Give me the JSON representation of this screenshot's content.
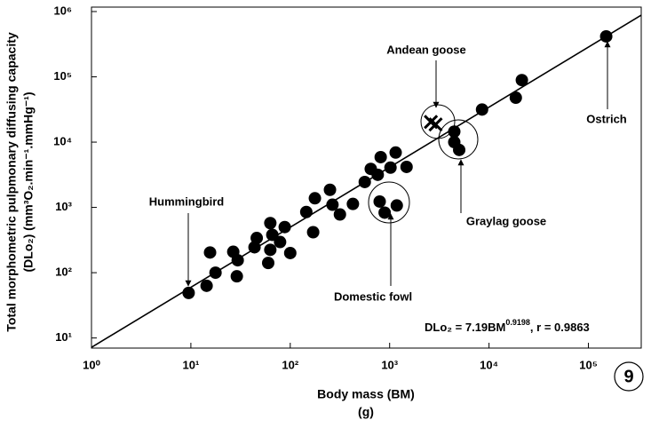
{
  "chart_data": {
    "type": "scatter",
    "x_label": "Body mass (BM)",
    "x_unit": "(g)",
    "y_label": "Total morphometric pulpmonary diffusing capacity",
    "y_unit": "(DLo₂) (mm³O₂.min⁻¹.mmHg⁻¹)",
    "log_x": true,
    "log_y": true,
    "xlim": [
      1,
      340000
    ],
    "ylim": [
      7,
      1170000
    ],
    "xticks": [
      {
        "value": 1,
        "label": "10⁰"
      },
      {
        "value": 10,
        "label": "10¹"
      },
      {
        "value": 100,
        "label": "10²"
      },
      {
        "value": 1000,
        "label": "10³"
      },
      {
        "value": 10000,
        "label": "10⁴"
      },
      {
        "value": 100000,
        "label": "10⁵"
      }
    ],
    "yticks": [
      {
        "value": 10,
        "label": "10¹"
      },
      {
        "value": 100,
        "label": "10²"
      },
      {
        "value": 1000,
        "label": "10³"
      },
      {
        "value": 10000,
        "label": "10⁴"
      },
      {
        "value": 100000,
        "label": "10⁵"
      },
      {
        "value": 1000000,
        "label": "10⁶"
      }
    ],
    "color": "#000000",
    "points": {
      "x": [
        9.5,
        14.4,
        15.6,
        17.7,
        26.7,
        29.6,
        29,
        43.7,
        46,
        63,
        63,
        66,
        60,
        79,
        88,
        100,
        145,
        170,
        177,
        251,
        266,
        316,
        427,
        562,
        646,
        759,
        813,
        1020,
        1150,
        1480,
        794,
        891,
        1180,
        4470,
        4470,
        5010,
        8510,
        18600,
        21400,
        151000
      ],
      "y": [
        49,
        63,
        204,
        100,
        209,
        155,
        88,
        245,
        340,
        224,
        575,
        380,
        141,
        295,
        500,
        200,
        850,
        417,
        1380,
        1860,
        1100,
        780,
        1130,
        2450,
        3890,
        3160,
        5890,
        4070,
        6920,
        4170,
        1230,
        832,
        1070,
        14500,
        10000,
        7590,
        31600,
        47900,
        89100,
        417000
      ]
    },
    "cross_points": {
      "x": [
        2600,
        2900
      ],
      "y": [
        20400,
        18600
      ]
    },
    "fit_line": {
      "coefficient": 7.19,
      "exponent": 0.9198
    },
    "equation": {
      "lhs": "DLo₂ = 7.19BM",
      "exponent": "0.9198",
      "rest": ", r = 0.9863"
    },
    "annotations": [
      "Hummingbird",
      "Andean goose",
      "Ostrich",
      "Graylag goose",
      "Domestic fowl"
    ],
    "figure_number": "9"
  }
}
